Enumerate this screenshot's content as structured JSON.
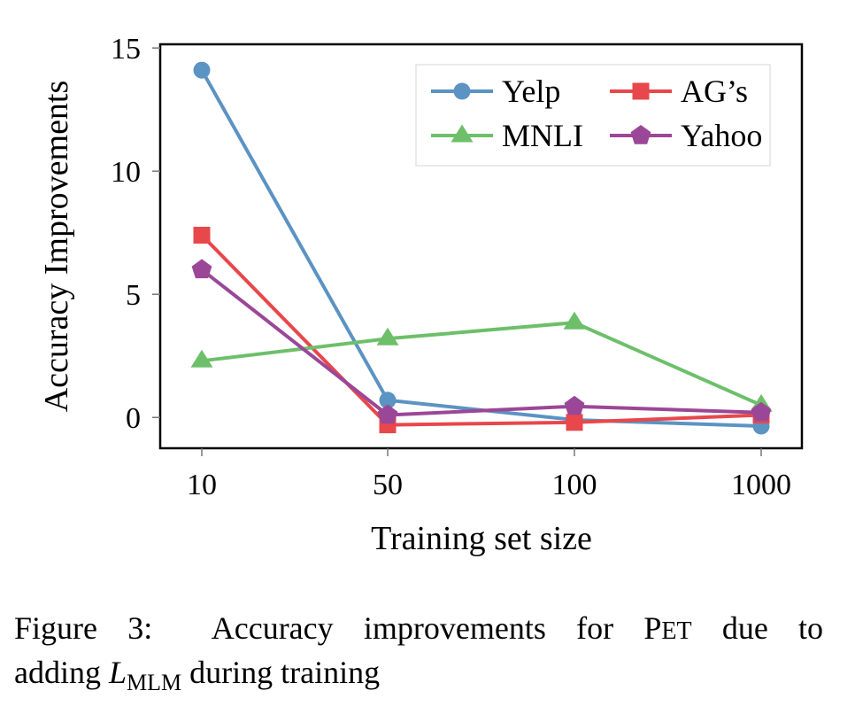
{
  "chart_data": {
    "type": "line",
    "title": "",
    "xlabel": "Training set size",
    "ylabel": "Accuracy Improvements",
    "categories": [
      "10",
      "50",
      "100",
      "1000"
    ],
    "yticks": [
      0,
      5,
      10,
      15
    ],
    "ytick_labels": [
      "0",
      "5",
      "10",
      "15"
    ],
    "ylim": [
      -1.25,
      15.15
    ],
    "grid": false,
    "legend_position": "top-right",
    "legend_columns": 2,
    "series": [
      {
        "name": "Yelp",
        "color": "#5b93c3",
        "marker": "circle",
        "values": [
          14.1,
          0.7,
          -0.1,
          -0.35
        ]
      },
      {
        "name": "AG's",
        "legend_label": "AG’s",
        "color": "#e8474b",
        "marker": "square",
        "values": [
          7.4,
          -0.3,
          -0.2,
          0.1
        ]
      },
      {
        "name": "MNLI",
        "color": "#6dbf6a",
        "marker": "triangle",
        "values": [
          2.3,
          3.2,
          3.85,
          0.5
        ]
      },
      {
        "name": "Yahoo",
        "color": "#9b4797",
        "marker": "pentagon",
        "values": [
          6.0,
          0.1,
          0.45,
          0.2
        ]
      }
    ]
  },
  "caption": {
    "label": "Figure 3:",
    "text_before": "Accuracy improvements for",
    "pet_p": "P",
    "pet_rest": "ET",
    "text_after": "due to",
    "line2_before": "adding",
    "loss_symbol": "L",
    "loss_subscript": "MLM",
    "line2_after": "during training"
  }
}
